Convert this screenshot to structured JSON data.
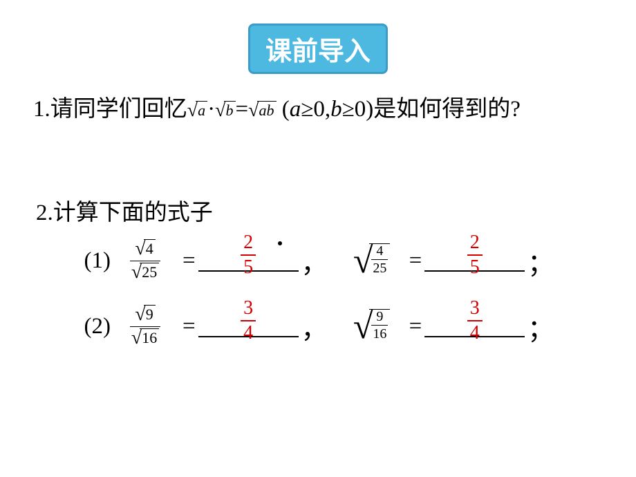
{
  "header": {
    "title": "课前导入"
  },
  "q1": {
    "prefix": "1.请同学们回忆",
    "formula_parts": {
      "sqrt_a": "a",
      "dot": "·",
      "sqrt_b": "b",
      "eq": "=",
      "sqrt_ab": "ab",
      "cond_open": "(",
      "a": "a",
      "ge1": "≥0,",
      "b": "b",
      "ge2": "≥0)"
    },
    "suffix": "是如何得到的?"
  },
  "q2": {
    "text": "2.计算下面的式子"
  },
  "rows": [
    {
      "label": "(1)",
      "left_num": "4",
      "left_den": "25",
      "right_num": "4",
      "right_den": "25",
      "ans_num": "2",
      "ans_den": "5",
      "ans2_num": "2",
      "ans2_den": "5",
      "sep": "，",
      "end": "；"
    },
    {
      "label": "(2)",
      "left_num": "9",
      "left_den": "16",
      "right_num": "9",
      "right_den": "16",
      "ans_num": "3",
      "ans_den": "4",
      "ans2_num": "3",
      "ans2_den": "4",
      "sep": "，",
      "end": "；"
    }
  ],
  "colors": {
    "header_bg": "#4db8e0",
    "header_border": "#3a9cc8",
    "header_text": "#ffffff",
    "body_text": "#000000",
    "answer": "#d40000",
    "background": "#ffffff"
  }
}
